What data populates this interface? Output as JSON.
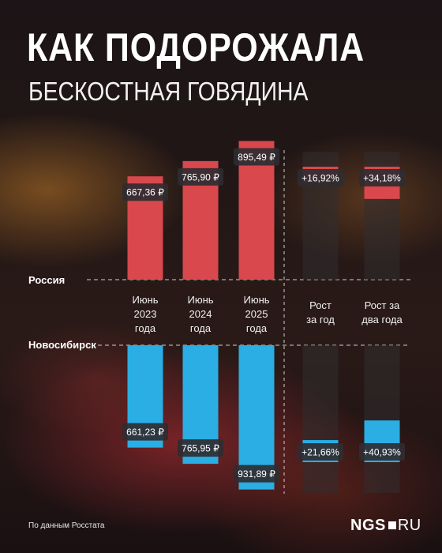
{
  "header": {
    "title": "КАК ПОДОРОЖАЛА",
    "subtitle": "БЕСКОСТНАЯ ГОВЯДИНА"
  },
  "footer": {
    "source": "По данным Росстата",
    "logo_main": "NGS",
    "logo_domain": "RU"
  },
  "chart_data": {
    "type": "bar",
    "categories": [
      [
        "Июнь",
        "2023",
        "года"
      ],
      [
        "Июнь",
        "2024",
        "года"
      ],
      [
        "Июнь",
        "2025",
        "года"
      ],
      [
        "Рост",
        "за год"
      ],
      [
        "Рост за",
        "два года"
      ]
    ],
    "series": [
      {
        "name": "Россия",
        "color": "#d8484c",
        "prices": [
          667.36,
          765.9,
          895.49
        ],
        "price_labels": [
          "667,36 ₽",
          "765,90 ₽",
          "895,49 ₽"
        ],
        "growth": [
          16.92,
          34.18
        ],
        "growth_labels": [
          "+16,92%",
          "+34,18%"
        ]
      },
      {
        "name": "Новосибирск",
        "color": "#2aaee3",
        "prices": [
          661.23,
          765.95,
          931.89
        ],
        "price_labels": [
          "661,23 ₽",
          "765,95 ₽",
          "931,89 ₽"
        ],
        "growth": [
          21.66,
          40.93
        ],
        "growth_labels": [
          "+21,66%",
          "+40,93%"
        ]
      }
    ]
  }
}
